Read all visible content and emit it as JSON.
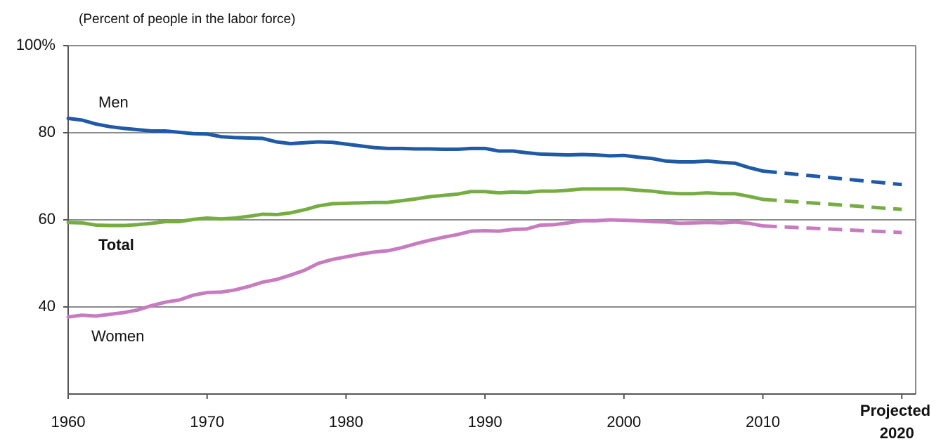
{
  "chart_data": {
    "type": "line",
    "subtitle": "(Percent of people in the labor force)",
    "annotations": {
      "projected": "Projected"
    },
    "x": [
      1960,
      1961,
      1962,
      1963,
      1964,
      1965,
      1966,
      1967,
      1968,
      1969,
      1970,
      1971,
      1972,
      1973,
      1974,
      1975,
      1976,
      1977,
      1978,
      1979,
      1980,
      1981,
      1982,
      1983,
      1984,
      1985,
      1986,
      1987,
      1988,
      1989,
      1990,
      1991,
      1992,
      1993,
      1994,
      1995,
      1996,
      1997,
      1998,
      1999,
      2000,
      2001,
      2002,
      2003,
      2004,
      2005,
      2006,
      2007,
      2008,
      2009,
      2010
    ],
    "series": [
      {
        "name": "Men",
        "color": "#1f5aa6",
        "values": [
          83.3,
          82.9,
          82.0,
          81.4,
          81.0,
          80.7,
          80.4,
          80.4,
          80.1,
          79.8,
          79.7,
          79.1,
          78.9,
          78.8,
          78.7,
          77.9,
          77.5,
          77.7,
          77.9,
          77.8,
          77.4,
          77.0,
          76.6,
          76.4,
          76.4,
          76.3,
          76.3,
          76.2,
          76.2,
          76.4,
          76.4,
          75.8,
          75.8,
          75.4,
          75.1,
          75.0,
          74.9,
          75.0,
          74.9,
          74.7,
          74.8,
          74.4,
          74.1,
          73.5,
          73.3,
          73.3,
          73.5,
          73.2,
          73.0,
          72.0,
          71.2
        ],
        "projection": {
          "x": [
            2010,
            2020
          ],
          "values": [
            71.2,
            68.1
          ]
        }
      },
      {
        "name": "Total",
        "color": "#76ad43",
        "values": [
          59.4,
          59.3,
          58.8,
          58.7,
          58.7,
          58.9,
          59.2,
          59.6,
          59.6,
          60.1,
          60.4,
          60.2,
          60.4,
          60.8,
          61.3,
          61.2,
          61.6,
          62.3,
          63.2,
          63.7,
          63.8,
          63.9,
          64.0,
          64.0,
          64.4,
          64.8,
          65.3,
          65.6,
          65.9,
          66.5,
          66.5,
          66.2,
          66.4,
          66.3,
          66.6,
          66.6,
          66.8,
          67.1,
          67.1,
          67.1,
          67.1,
          66.8,
          66.6,
          66.2,
          66.0,
          66.0,
          66.2,
          66.0,
          66.0,
          65.4,
          64.7
        ],
        "projection": {
          "x": [
            2010,
            2020
          ],
          "values": [
            64.7,
            62.4
          ]
        }
      },
      {
        "name": "Women",
        "color": "#c77cc0",
        "values": [
          37.7,
          38.1,
          37.9,
          38.3,
          38.7,
          39.3,
          40.3,
          41.1,
          41.6,
          42.7,
          43.3,
          43.4,
          43.9,
          44.7,
          45.7,
          46.3,
          47.3,
          48.4,
          50.0,
          50.9,
          51.5,
          52.1,
          52.6,
          52.9,
          53.6,
          54.5,
          55.3,
          56.0,
          56.6,
          57.4,
          57.5,
          57.4,
          57.8,
          57.9,
          58.8,
          58.9,
          59.3,
          59.8,
          59.8,
          60.0,
          59.9,
          59.8,
          59.6,
          59.5,
          59.2,
          59.3,
          59.4,
          59.3,
          59.5,
          59.2,
          58.6
        ],
        "projection": {
          "x": [
            2010,
            2020
          ],
          "values": [
            58.6,
            57.1
          ]
        }
      }
    ],
    "xlim": [
      1960,
      2021
    ],
    "xticks": [
      1960,
      1970,
      1980,
      1990,
      2000,
      2010,
      2020
    ],
    "ylim": [
      20,
      100
    ],
    "yticks": [
      40,
      60,
      80,
      {
        "value": 100,
        "label": "100%"
      }
    ],
    "grid": true
  }
}
